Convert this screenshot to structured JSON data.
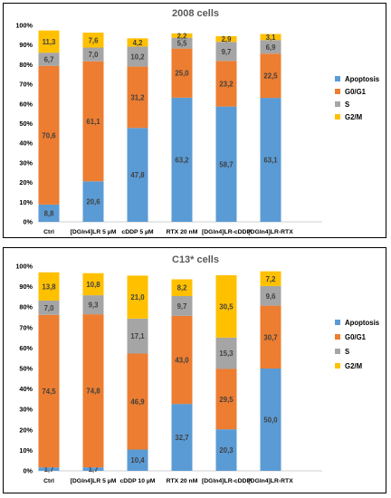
{
  "colors": {
    "Apoptosis": "#5B9BD5",
    "G0/G1": "#ED7D31",
    "S": "#A5A5A5",
    "G2/M": "#FFC000"
  },
  "chart_data": [
    {
      "type": "bar",
      "stacked": true,
      "percent": true,
      "title": "2008 cells",
      "categories": [
        "Ctrl",
        "[DGln4]LR 5 µM",
        "cDDP 5 µM",
        "RTX 20 nM",
        "[DGln4]LR-cDDP",
        "[DGln4]LR-RTX"
      ],
      "series": [
        {
          "name": "Apoptosis",
          "values": [
            8.8,
            20.6,
            47.8,
            63.2,
            58.7,
            63.1
          ],
          "labels": [
            "8,8",
            "20,6",
            "47,8",
            "63,2",
            "58,7",
            "63,1"
          ]
        },
        {
          "name": "G0/G1",
          "values": [
            70.6,
            61.1,
            31.2,
            25.0,
            23.2,
            22.5
          ],
          "labels": [
            "70,6",
            "61,1",
            "31,2",
            "25,0",
            "23,2",
            "22,5"
          ]
        },
        {
          "name": "S",
          "values": [
            6.7,
            7.0,
            10.2,
            5.5,
            9.7,
            6.9
          ],
          "labels": [
            "6,7",
            "7,0",
            "10,2",
            "5,5",
            "9,7",
            "6,9"
          ]
        },
        {
          "name": "G2/M",
          "values": [
            11.3,
            7.6,
            4.2,
            2.2,
            2.9,
            3.1
          ],
          "labels": [
            "11,3",
            "7,6",
            "4,2",
            "2,2",
            "2,9",
            "3,1"
          ]
        }
      ],
      "yticks": [
        "0%",
        "10%",
        "20%",
        "30%",
        "40%",
        "50%",
        "60%",
        "70%",
        "80%",
        "90%",
        "100%"
      ],
      "ylim": [
        0,
        100
      ],
      "grid": false,
      "legend": "right"
    },
    {
      "type": "bar",
      "stacked": true,
      "percent": true,
      "title": "C13* cells",
      "categories": [
        "Ctrl",
        "[DGln4]LR 5 µM",
        "cDDP 10 µM",
        "RTX 20 nM",
        "[DGln4]LR-cDDP",
        "[DGln4]LR-RTX"
      ],
      "series": [
        {
          "name": "Apoptosis",
          "values": [
            1.7,
            1.7,
            10.4,
            32.7,
            20.3,
            50.0
          ],
          "labels": [
            "1,7",
            "1,7",
            "10,4",
            "32,7",
            "20,3",
            "50,0"
          ]
        },
        {
          "name": "G0/G1",
          "values": [
            74.5,
            74.8,
            46.9,
            43.0,
            29.5,
            30.7
          ],
          "labels": [
            "74,5",
            "74,8",
            "46,9",
            "43,0",
            "29,5",
            "30,7"
          ]
        },
        {
          "name": "S",
          "values": [
            7.0,
            9.3,
            17.1,
            9.7,
            15.3,
            9.6
          ],
          "labels": [
            "7,0",
            "9,3",
            "17,1",
            "9,7",
            "15,3",
            "9,6"
          ]
        },
        {
          "name": "G2/M",
          "values": [
            13.8,
            10.8,
            21.0,
            8.2,
            30.5,
            7.2
          ],
          "labels": [
            "13,8",
            "10,8",
            "21,0",
            "8,2",
            "30,5",
            "7,2"
          ]
        }
      ],
      "yticks": [
        "0%",
        "10%",
        "20%",
        "30%",
        "40%",
        "50%",
        "60%",
        "70%",
        "80%",
        "90%",
        "100%"
      ],
      "ylim": [
        0,
        100
      ],
      "grid": false,
      "legend": "right"
    }
  ]
}
